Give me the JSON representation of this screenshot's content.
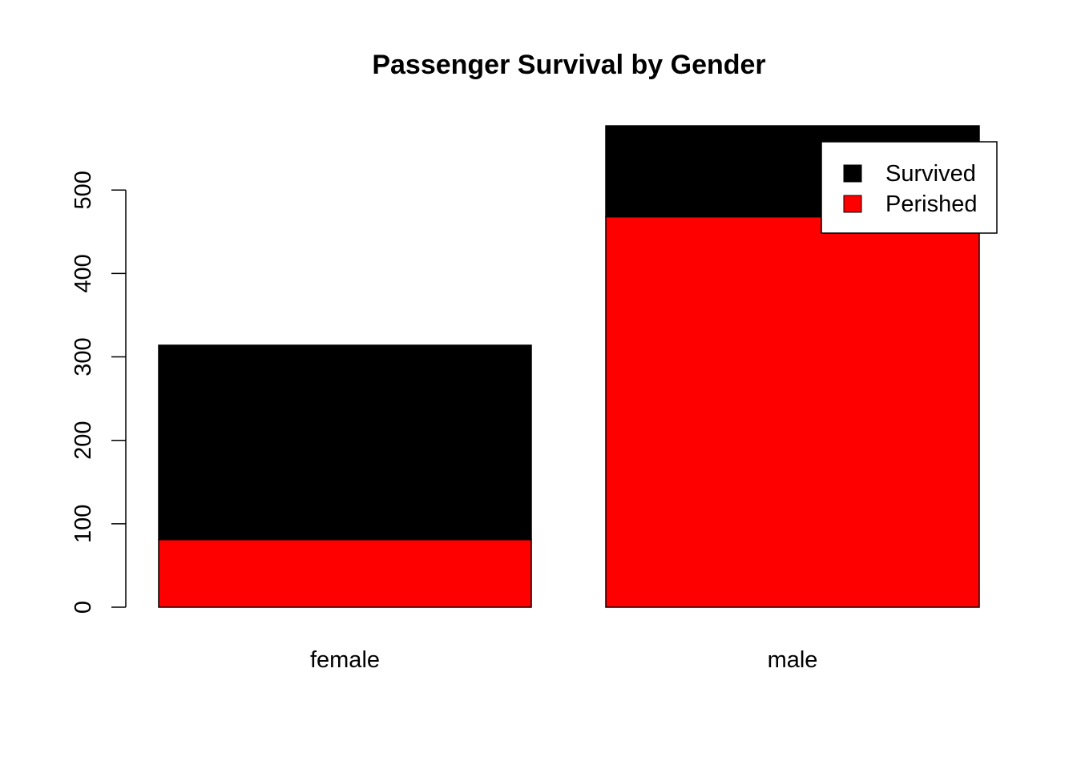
{
  "chart_data": {
    "type": "bar",
    "stacked": true,
    "title": "Passenger Survival by Gender",
    "xlabel": "",
    "ylabel": "",
    "categories": [
      "female",
      "male"
    ],
    "series": [
      {
        "name": "Perished",
        "color": "#ff0000",
        "values": [
          81,
          468
        ]
      },
      {
        "name": "Survived",
        "color": "#000000",
        "values": [
          233,
          109
        ]
      }
    ],
    "yticks": [
      0,
      100,
      200,
      300,
      400,
      500
    ],
    "ylim": [
      0,
      577
    ],
    "grid": false,
    "legend": {
      "position": "top-right",
      "entries": [
        {
          "label": "Survived",
          "color": "#000000"
        },
        {
          "label": "Perished",
          "color": "#ff0000"
        }
      ]
    }
  }
}
